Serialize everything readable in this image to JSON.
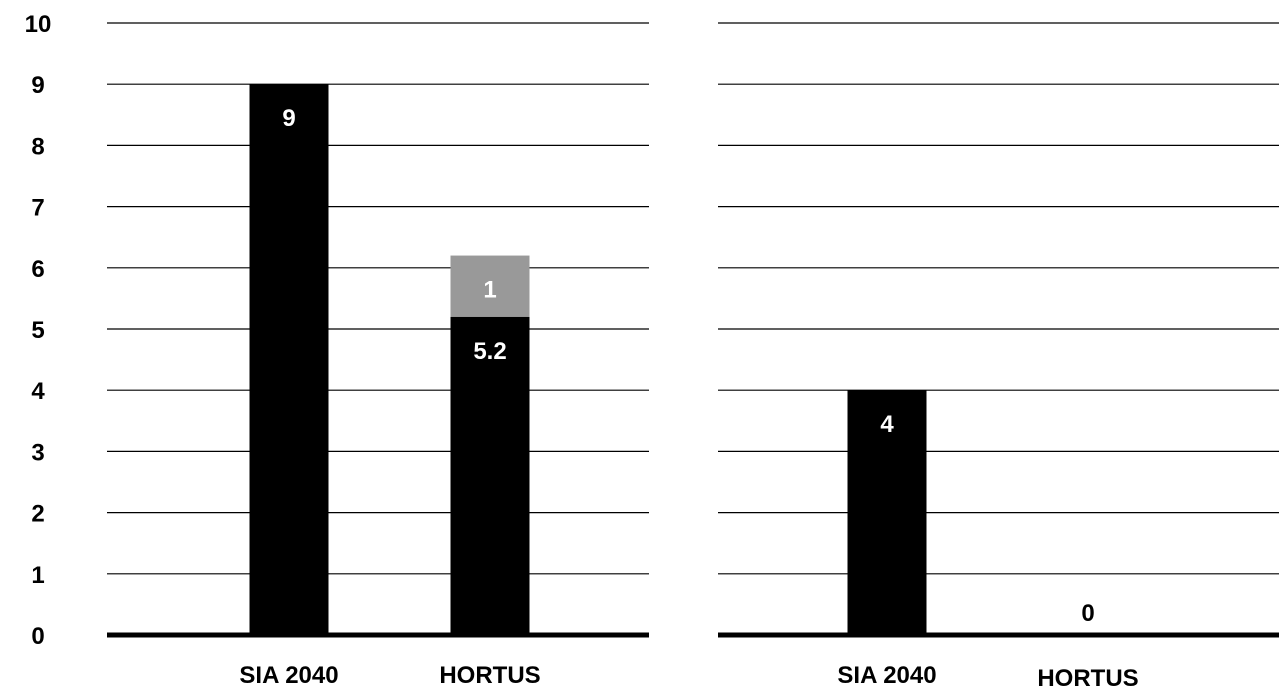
{
  "colors": {
    "background": "#ffffff",
    "primary": "#000000",
    "secondary": "#999999",
    "gridline": "#000000",
    "label_on_bar": "#ffffff",
    "label_outside": "#000000"
  },
  "chart_data": [
    {
      "type": "bar",
      "stacked": true,
      "title": "",
      "xlabel": "",
      "ylabel": "",
      "ylim": [
        0,
        10
      ],
      "y_ticks": [
        "0",
        "1",
        "2",
        "3",
        "4",
        "5",
        "6",
        "7",
        "8",
        "9",
        "10"
      ],
      "grid": true,
      "categories": [
        "SIA 2040",
        "HORTUS"
      ],
      "series": [
        {
          "values": [
            9,
            5.2
          ],
          "labels": [
            "9",
            "5.2"
          ],
          "color": "#000000"
        },
        {
          "values": [
            0,
            1
          ],
          "labels": [
            "",
            "1"
          ],
          "color": "#999999"
        }
      ]
    },
    {
      "type": "bar",
      "stacked": false,
      "title": "",
      "xlabel": "",
      "ylabel": "",
      "ylim": [
        0,
        10
      ],
      "grid": true,
      "categories": [
        "SIA 2040",
        "HORTUS"
      ],
      "series": [
        {
          "values": [
            4,
            0
          ],
          "labels": [
            "4",
            "0"
          ],
          "color": "#000000"
        }
      ]
    }
  ]
}
